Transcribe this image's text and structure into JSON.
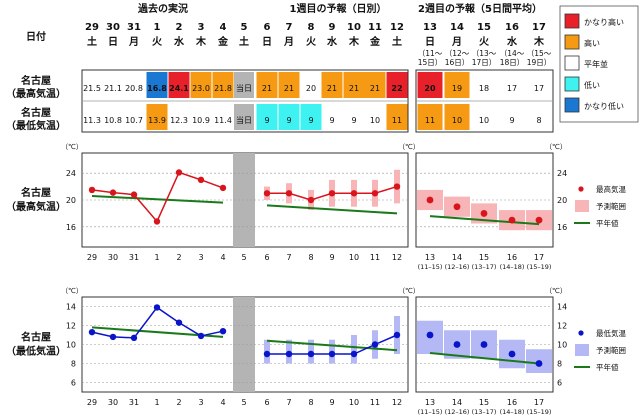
{
  "headers": {
    "date_label": "日付",
    "past": "過去の実況",
    "week1": "1週目の予報（日別）",
    "week2": "2週目の予報（5日間平均）",
    "today": "当日"
  },
  "days_past": [
    {
      "day": "29",
      "dow": "土"
    },
    {
      "day": "30",
      "dow": "日"
    },
    {
      "day": "31",
      "dow": "月"
    },
    {
      "day": "1",
      "dow": "火"
    },
    {
      "day": "2",
      "dow": "水"
    },
    {
      "day": "3",
      "dow": "木"
    },
    {
      "day": "4",
      "dow": "金"
    }
  ],
  "day_today": {
    "day": "5",
    "dow": "土"
  },
  "days_week1": [
    {
      "day": "6",
      "dow": "日"
    },
    {
      "day": "7",
      "dow": "月"
    },
    {
      "day": "8",
      "dow": "火"
    },
    {
      "day": "9",
      "dow": "水"
    },
    {
      "day": "10",
      "dow": "木"
    },
    {
      "day": "11",
      "dow": "金"
    },
    {
      "day": "12",
      "dow": "土"
    }
  ],
  "days_week2": [
    {
      "day": "13",
      "dow": "日",
      "range": "（11～",
      "range2": "15日）"
    },
    {
      "day": "14",
      "dow": "月",
      "range": "（12～",
      "range2": "16日）"
    },
    {
      "day": "15",
      "dow": "火",
      "range": "（13～",
      "range2": "17日）"
    },
    {
      "day": "16",
      "dow": "水",
      "range": "（14～",
      "range2": "18日）"
    },
    {
      "day": "17",
      "dow": "木",
      "range": "（15～",
      "range2": "19日）"
    }
  ],
  "rows": [
    {
      "label1": "名古屋",
      "label2": "（最高気温）",
      "past": [
        "21.5",
        "21.1",
        "20.8",
        "16.8",
        "24.1",
        "23.0",
        "21.8"
      ],
      "past_colors": [
        "#ffffff",
        "#ffffff",
        "#ffffff",
        "#1a78d2",
        "#e8202a",
        "#f59a12",
        "#f59a12"
      ],
      "week1": [
        "21",
        "21",
        "20",
        "21",
        "21",
        "21",
        "22"
      ],
      "week1_colors": [
        "#f59a12",
        "#f59a12",
        "#ffffff",
        "#f59a12",
        "#f59a12",
        "#f59a12",
        "#e8202a"
      ],
      "week2": [
        "20",
        "19",
        "18",
        "17",
        "17"
      ],
      "week2_colors": [
        "#e8202a",
        "#f59a12",
        "#ffffff",
        "#ffffff",
        "#ffffff"
      ]
    },
    {
      "label1": "名古屋",
      "label2": "（最低気温）",
      "past": [
        "11.3",
        "10.8",
        "10.7",
        "13.9",
        "12.3",
        "10.9",
        "11.4"
      ],
      "past_colors": [
        "#ffffff",
        "#ffffff",
        "#ffffff",
        "#f59a12",
        "#ffffff",
        "#ffffff",
        "#ffffff"
      ],
      "week1": [
        "9",
        "9",
        "9",
        "9",
        "9",
        "10",
        "11"
      ],
      "week1_colors": [
        "#3ff2f2",
        "#3ff2f2",
        "#3ff2f2",
        "#ffffff",
        "#ffffff",
        "#ffffff",
        "#f59a12"
      ],
      "week2": [
        "11",
        "10",
        "10",
        "9",
        "8"
      ],
      "week2_colors": [
        "#f59a12",
        "#f59a12",
        "#ffffff",
        "#ffffff",
        "#ffffff"
      ]
    }
  ],
  "legend_top": [
    {
      "label": "かなり高い",
      "color": "#e8202a"
    },
    {
      "label": "高い",
      "color": "#f59a12"
    },
    {
      "label": "平年並",
      "color": "#ffffff"
    },
    {
      "label": "低い",
      "color": "#3ff2f2"
    },
    {
      "label": "かなり低い",
      "color": "#1a78d2"
    }
  ],
  "colors": {
    "max_line": "#d8141c",
    "max_range": "#f7b5b8",
    "min_line": "#0a14c8",
    "min_range": "#b4b8f4",
    "normal": "#1a7a1a",
    "grid": "#9a9a9a",
    "today_band": "#b4b4b4"
  },
  "chart_data": [
    {
      "type": "line",
      "title": "名古屋（最高気温）",
      "unit": "（℃）",
      "ylim": [
        13,
        27
      ],
      "yticks": [
        16,
        20,
        24
      ],
      "x_labels_past": [
        "29",
        "30",
        "31",
        "1",
        "2",
        "3",
        "4"
      ],
      "x_label_today": "5",
      "x_labels_week1": [
        "6",
        "7",
        "8",
        "9",
        "10",
        "11",
        "12"
      ],
      "x_labels_week2": [
        "13",
        "14",
        "15",
        "16",
        "17"
      ],
      "x_sub_week2": [
        "(11–15)",
        "(12–16)",
        "(13–17)",
        "(14–18)",
        "(15–19)"
      ],
      "observed": [
        21.5,
        21.1,
        20.8,
        16.8,
        24.1,
        23.0,
        21.8
      ],
      "forecast_week1": [
        21,
        21,
        20,
        21,
        21,
        21,
        22
      ],
      "range_week1": [
        [
          20,
          22
        ],
        [
          19.5,
          22.5
        ],
        [
          18.5,
          21.5
        ],
        [
          19,
          23
        ],
        [
          19,
          23
        ],
        [
          19,
          23
        ],
        [
          19.5,
          24.5
        ]
      ],
      "forecast_week2": [
        20,
        19,
        18,
        17,
        17
      ],
      "range_week2": [
        [
          18.5,
          21.5
        ],
        [
          17.5,
          20.5
        ],
        [
          16.5,
          19.5
        ],
        [
          15.5,
          18.5
        ],
        [
          15.5,
          18.5
        ]
      ],
      "normal_past": [
        20.6,
        19.6
      ],
      "normal_week1": [
        19.2,
        18.0
      ],
      "normal_week2": [
        17.6,
        16.4
      ],
      "legend": [
        {
          "label": "最高気温",
          "kind": "dot"
        },
        {
          "label": "予測範囲",
          "kind": "box"
        },
        {
          "label": "平年値",
          "kind": "line"
        }
      ]
    },
    {
      "type": "line",
      "title": "名古屋（最低気温）",
      "unit": "（℃）",
      "ylim": [
        5,
        15
      ],
      "yticks": [
        6,
        8,
        10,
        12,
        14
      ],
      "x_labels_past": [
        "29",
        "30",
        "31",
        "1",
        "2",
        "3",
        "4"
      ],
      "x_label_today": "5",
      "x_labels_week1": [
        "6",
        "7",
        "8",
        "9",
        "10",
        "11",
        "12"
      ],
      "x_labels_week2": [
        "13",
        "14",
        "15",
        "16",
        "17"
      ],
      "x_sub_week2": [
        "(11–15)",
        "(12–16)",
        "(13–17)",
        "(14–18)",
        "(15–19)"
      ],
      "observed": [
        11.3,
        10.8,
        10.7,
        13.9,
        12.3,
        10.9,
        11.4
      ],
      "forecast_week1": [
        9,
        9,
        9,
        9,
        9,
        10,
        11
      ],
      "range_week1": [
        [
          8,
          10.5
        ],
        [
          8,
          10.5
        ],
        [
          8,
          10.5
        ],
        [
          8,
          10.5
        ],
        [
          8,
          11
        ],
        [
          8.5,
          11.5
        ],
        [
          9,
          13
        ]
      ],
      "forecast_week2": [
        11,
        10,
        10,
        9,
        8
      ],
      "range_week2": [
        [
          9,
          12.5
        ],
        [
          8.5,
          11.5
        ],
        [
          8.5,
          11.5
        ],
        [
          7.5,
          10.5
        ],
        [
          7,
          9.5
        ]
      ],
      "normal_past": [
        11.8,
        10.8
      ],
      "normal_week1": [
        10.4,
        9.4
      ],
      "normal_week2": [
        9.1,
        8.0
      ],
      "legend": [
        {
          "label": "最低気温",
          "kind": "dot"
        },
        {
          "label": "予測範囲",
          "kind": "box"
        },
        {
          "label": "平年値",
          "kind": "line"
        }
      ]
    }
  ]
}
